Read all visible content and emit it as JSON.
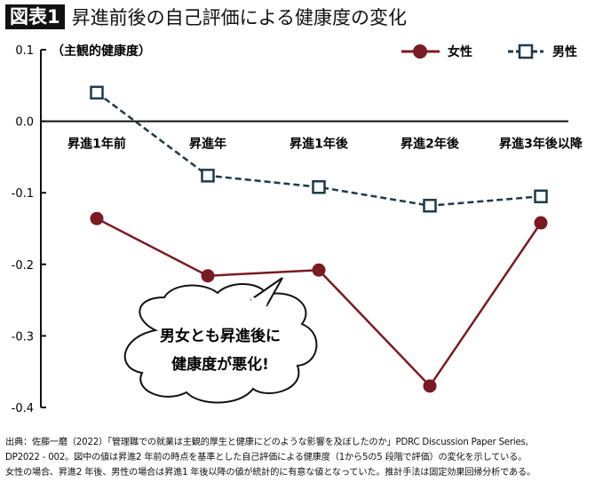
{
  "title": {
    "badge": "図表1",
    "text": "昇進前後の自己評価による健康度の変化"
  },
  "chart_data": {
    "type": "line",
    "title": "昇進前後の自己評価による健康度の変化",
    "ylabel": "（主観的健康度）",
    "ylim": [
      -0.4,
      0.1
    ],
    "yticks": [
      "0.1",
      "0.0",
      "-0.1",
      "-0.2",
      "-0.3",
      "-0.4"
    ],
    "yticks_values": [
      0.1,
      0.0,
      -0.1,
      -0.2,
      -0.3,
      -0.4
    ],
    "categories": [
      "昇進1年前",
      "昇進年",
      "昇進1年後",
      "昇進2年後",
      "昇進3年後以降"
    ],
    "legend_position": "top-right",
    "grid": false,
    "series": [
      {
        "name": "女性",
        "values": [
          -0.136,
          -0.216,
          -0.208,
          -0.37,
          -0.142
        ],
        "color": "#7a1a22",
        "marker": "circle",
        "style": "solid"
      },
      {
        "name": "男性",
        "values": [
          0.04,
          -0.076,
          -0.092,
          -0.118,
          -0.105
        ],
        "color": "#1e3a4a",
        "marker": "open-square",
        "style": "dashed"
      }
    ],
    "annotation": {
      "line1": "男女とも昇進後に",
      "line2": "健康度が悪化!"
    }
  },
  "footnote": [
    "出典：佐藤一磨（2022）「管理職での就業は主観的厚生と健康にどのような影響を及ぼしたのか」PDRC Discussion Paper Series,",
    "DP2022 - 002。図中の値は昇進2 年前の時点を基準とした自己評価による健康度（1から5の5 段階で評価）の変化を示している。",
    "女性の場合、昇進2 年後、男性の場合は昇進1 年後以降の値が統計的に有意な値となっていた。推計手法は固定効果回帰分析である。"
  ]
}
